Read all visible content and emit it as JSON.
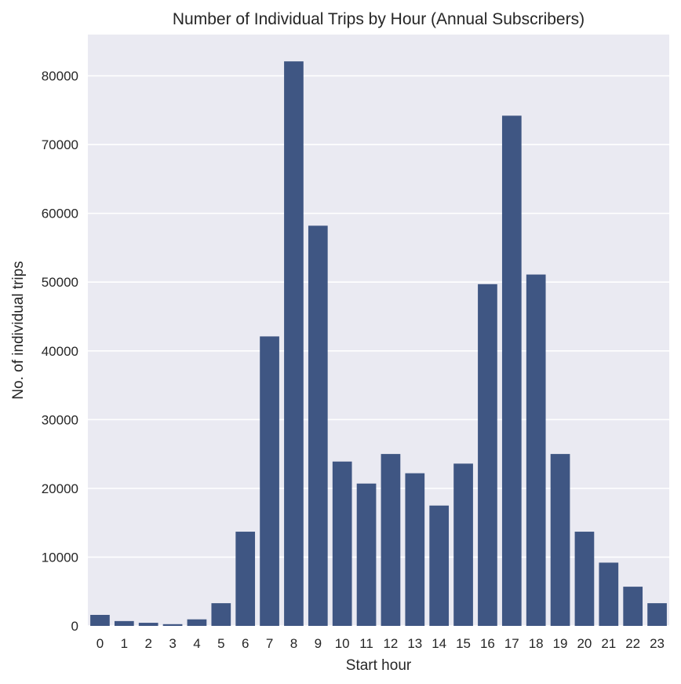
{
  "chart_data": {
    "type": "bar",
    "title": "Number of Individual Trips by Hour (Annual Subscribers)",
    "xlabel": "Start hour",
    "ylabel": "No. of individual trips",
    "categories": [
      "0",
      "1",
      "2",
      "3",
      "4",
      "5",
      "6",
      "7",
      "8",
      "9",
      "10",
      "11",
      "12",
      "13",
      "14",
      "15",
      "16",
      "17",
      "18",
      "19",
      "20",
      "21",
      "22",
      "23"
    ],
    "values": [
      1600,
      700,
      450,
      250,
      950,
      3300,
      13700,
      42100,
      82100,
      58200,
      23900,
      20700,
      25000,
      22200,
      17500,
      23600,
      49700,
      74200,
      51100,
      25000,
      13700,
      9200,
      5700,
      3300
    ],
    "ylim": [
      0,
      86000
    ],
    "yticks": [
      0,
      10000,
      20000,
      30000,
      40000,
      50000,
      60000,
      70000,
      80000
    ],
    "ytick_labels": [
      "0",
      "10000",
      "20000",
      "30000",
      "40000",
      "50000",
      "60000",
      "70000",
      "80000"
    ],
    "grid": true,
    "bar_color": "#3f5683",
    "background_color": "#eaeaf2",
    "grid_color": "#ffffff"
  }
}
